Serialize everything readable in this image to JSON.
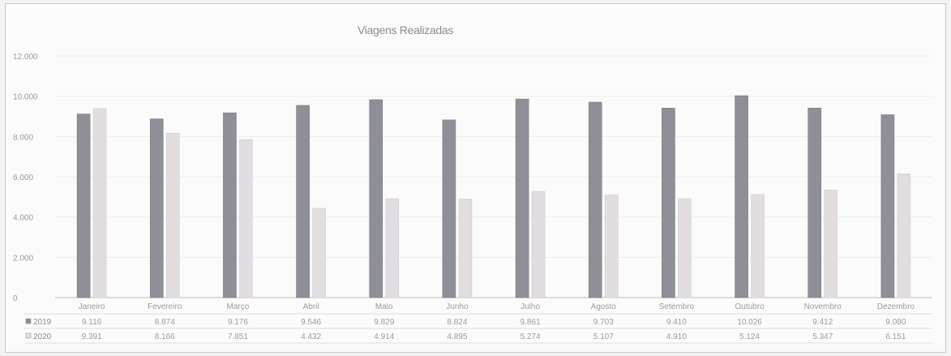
{
  "chart_data": {
    "type": "bar",
    "title": "Viagens Realizadas",
    "xlabel": "",
    "ylabel": "",
    "ylim": [
      0,
      12000
    ],
    "yticks": [
      "0",
      "2.000",
      "4.000",
      "6.000",
      "8.000",
      "10.000",
      "12.000"
    ],
    "ytick_values": [
      0,
      2000,
      4000,
      6000,
      8000,
      10000,
      12000
    ],
    "grid": true,
    "legend": "data-table-left",
    "categories": [
      "Janeiro",
      "Fevereiro",
      "Março",
      "Abril",
      "Maio",
      "Junho",
      "Julho",
      "Agosto",
      "Setembro",
      "Outubro",
      "Novembro",
      "Dezembro"
    ],
    "series": [
      {
        "name": "2019",
        "color": "#8f8f98",
        "values": [
          9116,
          8874,
          9176,
          9546,
          9829,
          8824,
          9861,
          9703,
          9410,
          10026,
          9412,
          9080
        ],
        "labels": [
          "9.116",
          "8.874",
          "9.176",
          "9.546",
          "9.829",
          "8.824",
          "9.861",
          "9.703",
          "9.410",
          "10.026",
          "9.412",
          "9.080"
        ]
      },
      {
        "name": "2020",
        "color": "#e2dde0",
        "values": [
          9391,
          8166,
          7851,
          4432,
          4914,
          4895,
          5274,
          5107,
          4910,
          5124,
          5347,
          6151
        ],
        "labels": [
          "9.391",
          "8.166",
          "7.851",
          "4.432",
          "4.914",
          "4.895",
          "5.274",
          "5.107",
          "4.910",
          "5.124",
          "5.347",
          "6.151"
        ]
      }
    ]
  }
}
